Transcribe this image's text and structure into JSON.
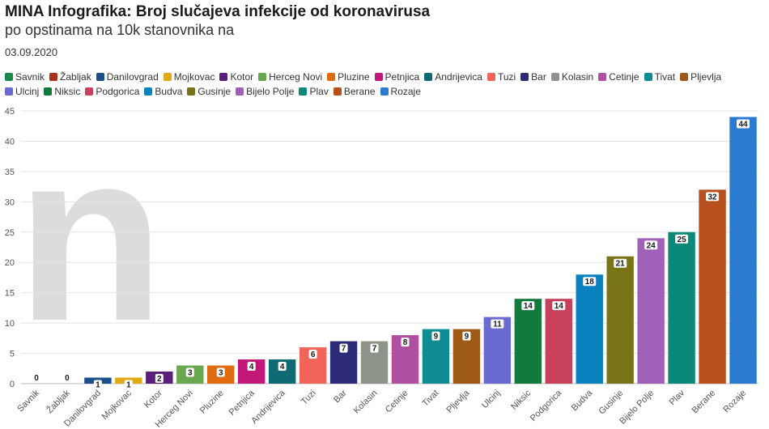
{
  "header": {
    "title": "MINA Infografika: Broj slučajeva infekcije od koronavirusa",
    "subtitle": "po opstinama na 10k stanovnika na",
    "date": "03.09.2020"
  },
  "watermark": "n",
  "chart_data": {
    "type": "bar",
    "title": "MINA Infografika: Broj slučajeva infekcije od koronavirusa",
    "subtitle": "po opstinama na 10k stanovnika na",
    "xlabel": "",
    "ylabel": "",
    "ylim": [
      0,
      45
    ],
    "yticks": [
      0,
      5,
      10,
      15,
      20,
      25,
      30,
      35,
      40,
      45
    ],
    "grid": true,
    "legend_position": "top",
    "categories": [
      "Savnik",
      "Žabljak",
      "Danilovgrad",
      "Mojkovac",
      "Kotor",
      "Herceg Novi",
      "Pluzine",
      "Petnjica",
      "Andrijevica",
      "Tuzi",
      "Bar",
      "Kolasin",
      "Cetinje",
      "Tivat",
      "Pljevlja",
      "Ulcinj",
      "Niksic",
      "Podgorica",
      "Budva",
      "Gusinje",
      "Bijelo Polje",
      "Plav",
      "Berane",
      "Rozaje"
    ],
    "values": [
      0,
      0,
      1,
      1,
      2,
      3,
      3,
      4,
      4,
      6,
      7,
      7,
      8,
      9,
      9,
      11,
      14,
      14,
      18,
      21,
      24,
      25,
      32,
      44
    ],
    "colors": [
      "#1a8a4a",
      "#a8321e",
      "#1f4e8c",
      "#e0aa14",
      "#5a1f78",
      "#6aa84f",
      "#e06c10",
      "#c2187a",
      "#0e6b73",
      "#f0645a",
      "#2e2a7a",
      "#8f948a",
      "#b050a0",
      "#0e8c92",
      "#9e5a14",
      "#6a6ad0",
      "#127a3a",
      "#c8405a",
      "#0a82c0",
      "#7a7418",
      "#a060b8",
      "#0a8878",
      "#b8501e",
      "#2a7ad0"
    ]
  },
  "legend": [
    {
      "label": "Savnik",
      "color": "#1a8a4a"
    },
    {
      "label": "Žabljak",
      "color": "#a8321e"
    },
    {
      "label": "Danilovgrad",
      "color": "#1f4e8c"
    },
    {
      "label": "Mojkovac",
      "color": "#e0aa14"
    },
    {
      "label": "Kotor",
      "color": "#5a1f78"
    },
    {
      "label": "Herceg Novi",
      "color": "#6aa84f"
    },
    {
      "label": "Pluzine",
      "color": "#e06c10"
    },
    {
      "label": "Petnjica",
      "color": "#c2187a"
    },
    {
      "label": "Andrijevica",
      "color": "#0e6b73"
    },
    {
      "label": "Tuzi",
      "color": "#f0645a"
    },
    {
      "label": "Bar",
      "color": "#2e2a7a"
    },
    {
      "label": "Kolasin",
      "color": "#8f948a"
    },
    {
      "label": "Cetinje",
      "color": "#b050a0"
    },
    {
      "label": "Tivat",
      "color": "#0e8c92"
    },
    {
      "label": "Pljevlja",
      "color": "#9e5a14"
    },
    {
      "label": "Ulcinj",
      "color": "#6a6ad0"
    },
    {
      "label": "Niksic",
      "color": "#127a3a"
    },
    {
      "label": "Podgorica",
      "color": "#c8405a"
    },
    {
      "label": "Budva",
      "color": "#0a82c0"
    },
    {
      "label": "Gusinje",
      "color": "#7a7418"
    },
    {
      "label": "Bijelo Polje",
      "color": "#a060b8"
    },
    {
      "label": "Plav",
      "color": "#0a8878"
    },
    {
      "label": "Berane",
      "color": "#b8501e"
    },
    {
      "label": "Rozaje",
      "color": "#2a7ad0"
    }
  ]
}
